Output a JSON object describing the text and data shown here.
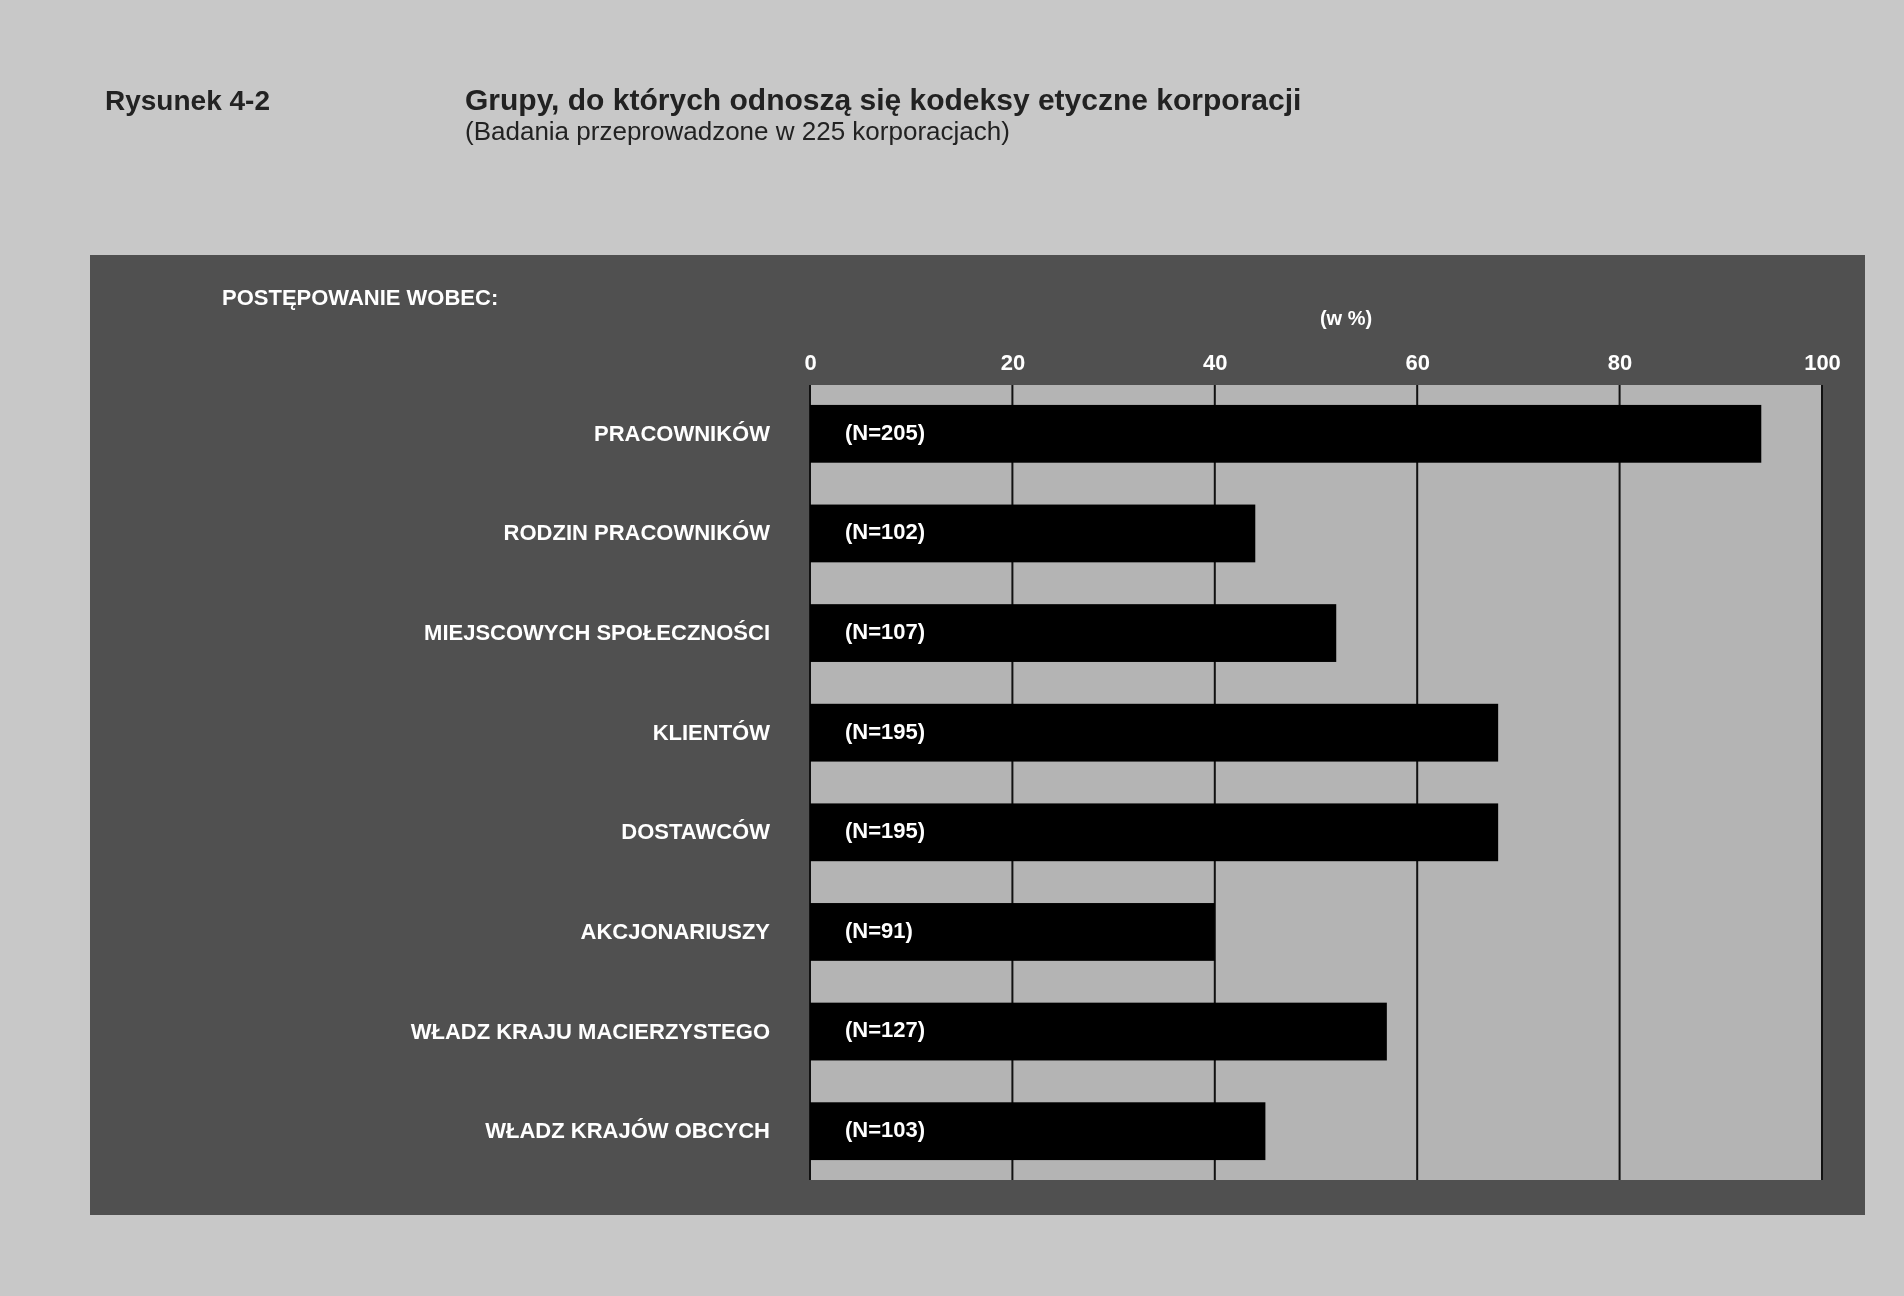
{
  "chart_data": {
    "type": "bar",
    "orientation": "horizontal",
    "title": "Grupy, do których odnoszą się kodeksy etyczne korporacji",
    "subtitle": "(Badania przeprowadzone w 225 korporacjach)",
    "xlabel": "(w %)",
    "annotations": [
      "Rysunek 4-2",
      "POSTĘPOWANIE WOBEC:",
      "(N=205)",
      "(N=102)",
      "(N=107)",
      "(N=195)",
      "(N=195)",
      "(N=91)",
      "(N=127)",
      "(N=103)"
    ],
    "categories": [
      "PRACOWNIKÓW",
      "RODZIN PRACOWNIKÓW",
      "MIEJSCOWYCH SPOŁECZNOŚCI",
      "KLIENTÓW",
      "DOSTAWCÓW",
      "AKCJONARIUSZY",
      "WŁADZ KRAJU MACIERZYSTEGO",
      "WŁADZ KRAJÓW OBCYCH"
    ],
    "values": [
      94,
      44,
      52,
      68,
      68,
      40,
      57,
      45
    ],
    "color": "#000000",
    "xlim": [
      0,
      100
    ],
    "xticks": [
      0,
      20,
      40,
      60,
      80,
      100
    ],
    "grid": "x"
  }
}
